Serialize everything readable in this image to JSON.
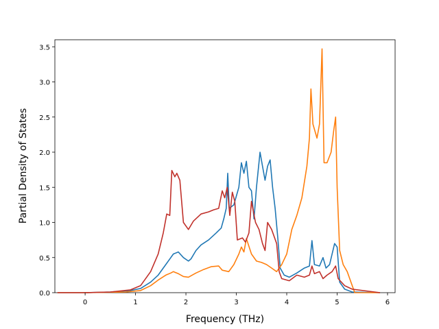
{
  "chart_data": {
    "type": "line",
    "title": "",
    "xlabel": "Frequency (THz)",
    "ylabel": "Partial Density of States",
    "xlim": [
      -0.6,
      6.15
    ],
    "ylim": [
      0,
      3.6
    ],
    "xticks": [
      0,
      1,
      2,
      3,
      4,
      5,
      6
    ],
    "yticks": [
      0.0,
      0.5,
      1.0,
      1.5,
      2.0,
      2.5,
      3.0,
      3.5
    ],
    "xtick_labels": [
      "0",
      "1",
      "2",
      "3",
      "4",
      "5",
      "6"
    ],
    "ytick_labels": [
      "0.0",
      "0.5",
      "1.0",
      "1.5",
      "2.0",
      "2.5",
      "3.0",
      "3.5"
    ],
    "grid": false,
    "legend": "none",
    "series": [
      {
        "color": "#1f77b4",
        "points": [
          [
            -0.55,
            0
          ],
          [
            0,
            0
          ],
          [
            0.5,
            0.01
          ],
          [
            0.9,
            0.03
          ],
          [
            1.1,
            0.06
          ],
          [
            1.3,
            0.15
          ],
          [
            1.45,
            0.25
          ],
          [
            1.6,
            0.4
          ],
          [
            1.7,
            0.5
          ],
          [
            1.75,
            0.55
          ],
          [
            1.85,
            0.58
          ],
          [
            1.95,
            0.5
          ],
          [
            2.05,
            0.45
          ],
          [
            2.1,
            0.48
          ],
          [
            2.2,
            0.6
          ],
          [
            2.3,
            0.68
          ],
          [
            2.45,
            0.75
          ],
          [
            2.6,
            0.85
          ],
          [
            2.7,
            0.92
          ],
          [
            2.75,
            1.05
          ],
          [
            2.8,
            1.2
          ],
          [
            2.83,
            1.7
          ],
          [
            2.86,
            1.2
          ],
          [
            2.95,
            1.25
          ],
          [
            3.05,
            1.5
          ],
          [
            3.1,
            1.85
          ],
          [
            3.15,
            1.7
          ],
          [
            3.2,
            1.87
          ],
          [
            3.25,
            1.5
          ],
          [
            3.3,
            1.45
          ],
          [
            3.35,
            1.05
          ],
          [
            3.4,
            1.5
          ],
          [
            3.47,
            2.0
          ],
          [
            3.52,
            1.8
          ],
          [
            3.57,
            1.6
          ],
          [
            3.62,
            1.8
          ],
          [
            3.67,
            1.89
          ],
          [
            3.72,
            1.5
          ],
          [
            3.77,
            1.2
          ],
          [
            3.82,
            0.8
          ],
          [
            3.87,
            0.35
          ],
          [
            3.95,
            0.25
          ],
          [
            4.05,
            0.22
          ],
          [
            4.2,
            0.28
          ],
          [
            4.35,
            0.35
          ],
          [
            4.45,
            0.38
          ],
          [
            4.5,
            0.74
          ],
          [
            4.55,
            0.4
          ],
          [
            4.65,
            0.38
          ],
          [
            4.72,
            0.5
          ],
          [
            4.78,
            0.35
          ],
          [
            4.85,
            0.4
          ],
          [
            4.95,
            0.7
          ],
          [
            5.0,
            0.65
          ],
          [
            5.05,
            0.15
          ],
          [
            5.15,
            0.05
          ],
          [
            5.3,
            0.01
          ],
          [
            5.85,
            0
          ]
        ]
      },
      {
        "color": "#ff7f0e",
        "points": [
          [
            -0.55,
            0
          ],
          [
            0,
            0
          ],
          [
            0.8,
            0.01
          ],
          [
            1.1,
            0.03
          ],
          [
            1.3,
            0.1
          ],
          [
            1.45,
            0.18
          ],
          [
            1.6,
            0.25
          ],
          [
            1.7,
            0.28
          ],
          [
            1.75,
            0.3
          ],
          [
            1.85,
            0.27
          ],
          [
            1.95,
            0.23
          ],
          [
            2.05,
            0.22
          ],
          [
            2.2,
            0.28
          ],
          [
            2.35,
            0.33
          ],
          [
            2.5,
            0.37
          ],
          [
            2.65,
            0.38
          ],
          [
            2.72,
            0.32
          ],
          [
            2.85,
            0.3
          ],
          [
            2.95,
            0.4
          ],
          [
            3.05,
            0.55
          ],
          [
            3.1,
            0.65
          ],
          [
            3.15,
            0.58
          ],
          [
            3.2,
            0.77
          ],
          [
            3.3,
            0.55
          ],
          [
            3.4,
            0.45
          ],
          [
            3.5,
            0.43
          ],
          [
            3.6,
            0.4
          ],
          [
            3.7,
            0.35
          ],
          [
            3.8,
            0.3
          ],
          [
            3.9,
            0.4
          ],
          [
            4.0,
            0.55
          ],
          [
            4.1,
            0.9
          ],
          [
            4.2,
            1.1
          ],
          [
            4.3,
            1.35
          ],
          [
            4.4,
            1.8
          ],
          [
            4.45,
            2.2
          ],
          [
            4.48,
            2.9
          ],
          [
            4.52,
            2.4
          ],
          [
            4.6,
            2.2
          ],
          [
            4.65,
            2.4
          ],
          [
            4.7,
            3.47
          ],
          [
            4.74,
            1.85
          ],
          [
            4.8,
            1.85
          ],
          [
            4.88,
            2.0
          ],
          [
            4.93,
            2.3
          ],
          [
            4.97,
            2.5
          ],
          [
            5.0,
            1.5
          ],
          [
            5.05,
            0.6
          ],
          [
            5.12,
            0.4
          ],
          [
            5.2,
            0.3
          ],
          [
            5.3,
            0.1
          ],
          [
            5.35,
            0
          ],
          [
            5.85,
            0
          ]
        ]
      },
      {
        "color": "#c0302a",
        "points": [
          [
            -0.55,
            0
          ],
          [
            0,
            0
          ],
          [
            0.5,
            0.01
          ],
          [
            0.9,
            0.04
          ],
          [
            1.1,
            0.1
          ],
          [
            1.3,
            0.3
          ],
          [
            1.45,
            0.55
          ],
          [
            1.55,
            0.85
          ],
          [
            1.62,
            1.12
          ],
          [
            1.68,
            1.1
          ],
          [
            1.72,
            1.74
          ],
          [
            1.78,
            1.65
          ],
          [
            1.82,
            1.7
          ],
          [
            1.88,
            1.6
          ],
          [
            1.95,
            1.0
          ],
          [
            2.05,
            0.9
          ],
          [
            2.15,
            1.02
          ],
          [
            2.3,
            1.12
          ],
          [
            2.45,
            1.15
          ],
          [
            2.55,
            1.18
          ],
          [
            2.65,
            1.2
          ],
          [
            2.72,
            1.45
          ],
          [
            2.77,
            1.35
          ],
          [
            2.82,
            1.5
          ],
          [
            2.87,
            1.1
          ],
          [
            2.92,
            1.43
          ],
          [
            2.97,
            1.3
          ],
          [
            3.02,
            0.75
          ],
          [
            3.12,
            0.78
          ],
          [
            3.18,
            0.72
          ],
          [
            3.25,
            0.85
          ],
          [
            3.3,
            1.3
          ],
          [
            3.38,
            1.0
          ],
          [
            3.45,
            0.9
          ],
          [
            3.52,
            0.7
          ],
          [
            3.57,
            0.6
          ],
          [
            3.62,
            1.0
          ],
          [
            3.7,
            0.9
          ],
          [
            3.8,
            0.7
          ],
          [
            3.85,
            0.3
          ],
          [
            3.9,
            0.2
          ],
          [
            4.05,
            0.17
          ],
          [
            4.2,
            0.25
          ],
          [
            4.35,
            0.22
          ],
          [
            4.45,
            0.25
          ],
          [
            4.5,
            0.38
          ],
          [
            4.55,
            0.27
          ],
          [
            4.65,
            0.3
          ],
          [
            4.72,
            0.2
          ],
          [
            4.8,
            0.25
          ],
          [
            4.9,
            0.3
          ],
          [
            4.97,
            0.38
          ],
          [
            5.02,
            0.2
          ],
          [
            5.15,
            0.1
          ],
          [
            5.3,
            0.05
          ],
          [
            5.85,
            0
          ]
        ]
      }
    ]
  }
}
